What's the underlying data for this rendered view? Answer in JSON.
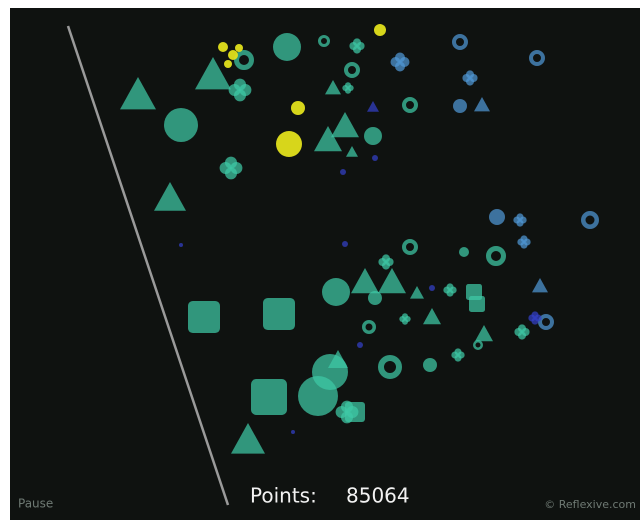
{
  "hud": {
    "pause": "Pause",
    "points_label": "Points:",
    "points": 85064,
    "credit": "© Reflexive.com"
  }
}
